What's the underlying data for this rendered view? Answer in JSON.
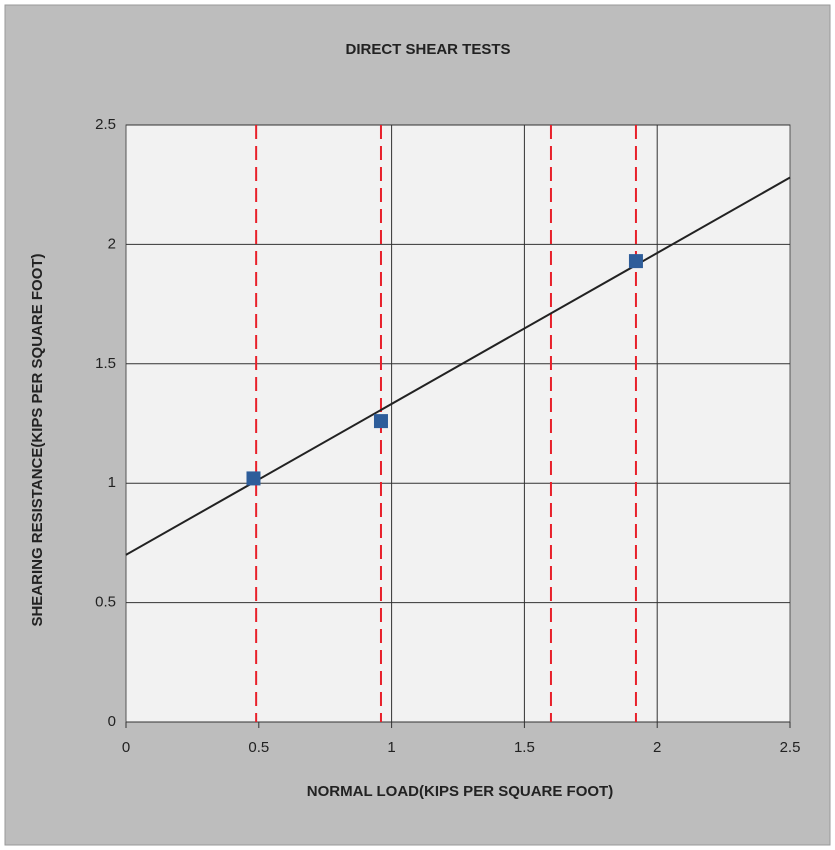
{
  "chart_data": {
    "type": "scatter",
    "title": "DIRECT SHEAR TESTS",
    "xlabel": "NORMAL LOAD(KIPS PER SQUARE FOOT)",
    "ylabel": "SHEARING RESISTANCE(KIPS PER SQUARE FOOT)",
    "x": [
      0.48,
      0.96,
      1.92
    ],
    "values": [
      1.02,
      1.26,
      1.93
    ],
    "color": "#2e5d9a",
    "trendline": {
      "x": [
        0,
        2.5
      ],
      "y": [
        0.7,
        2.28
      ],
      "color": "#222222"
    },
    "dashed_lines": {
      "x": [
        0.49,
        0.96,
        1.6,
        1.92
      ],
      "color": "#e8202a"
    },
    "xlim": [
      0,
      2.5
    ],
    "xticks": [
      0,
      0.5,
      1,
      1.5,
      2,
      2.5
    ],
    "ylim": [
      0,
      2.5
    ],
    "yticks": [
      0,
      0.5,
      1,
      1.5,
      2,
      2.5
    ],
    "xgrid": [
      1,
      1.5,
      2
    ],
    "grid": true
  }
}
